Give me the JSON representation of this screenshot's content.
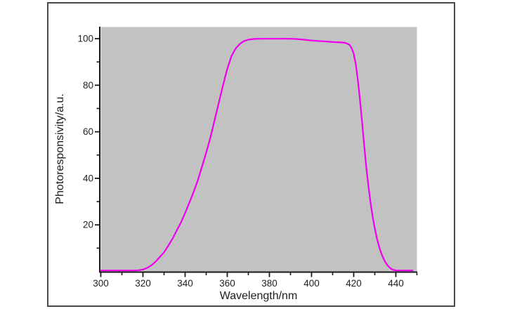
{
  "figure": {
    "kind": "scientific-line-plot",
    "background_color": "#ffffff",
    "border_color": "#4a4a4a"
  },
  "chart_data": {
    "type": "line",
    "title": "",
    "xlabel": "Wavelength/nm",
    "ylabel": "Photoresponsivity/a.u.",
    "xlim": [
      300,
      450
    ],
    "ylim": [
      0,
      105
    ],
    "x_major_ticks": [
      300,
      320,
      340,
      360,
      380,
      400,
      420,
      440
    ],
    "x_minor_ticks": [
      310,
      330,
      350,
      370,
      390,
      410,
      430,
      450
    ],
    "y_major_ticks": [
      20,
      40,
      60,
      80,
      100
    ],
    "y_minor_ticks": [
      10,
      30,
      50,
      70,
      90
    ],
    "grid": false,
    "legend_position": "none",
    "plot_background": "#c2c2c2",
    "line_color": "#ee00ee",
    "axis_color": "#1a1a1a",
    "tick_label_color": "#1f1f1f",
    "series": [
      {
        "name": "photoresponsivity",
        "x": [
          300,
          304,
          308,
          312,
          316,
          318,
          320,
          322,
          324,
          326,
          328,
          330,
          332,
          334,
          336,
          338,
          340,
          342,
          344,
          346,
          348,
          350,
          352,
          354,
          356,
          358,
          360,
          362,
          364,
          366,
          368,
          370,
          373,
          376,
          380,
          384,
          388,
          392,
          396,
          399,
          402,
          405,
          408,
          411,
          414,
          416,
          418,
          419,
          420,
          421,
          422,
          423,
          424,
          425,
          426,
          427,
          428,
          429,
          430,
          431,
          432,
          433,
          434,
          435,
          436,
          437,
          438,
          439,
          440,
          442,
          444,
          446,
          448
        ],
        "y": [
          0.4,
          0.4,
          0.4,
          0.4,
          0.4,
          0.5,
          0.8,
          1.5,
          2.6,
          4.2,
          6.2,
          8.2,
          11,
          14,
          17.5,
          21,
          25,
          29.5,
          34,
          39,
          45,
          51,
          57.5,
          65,
          72.5,
          80,
          87,
          92.5,
          95.8,
          97.8,
          99,
          99.6,
          99.9,
          100,
          100,
          100,
          100,
          99.9,
          99.6,
          99.3,
          99.1,
          98.9,
          98.7,
          98.5,
          98.4,
          98.2,
          97.4,
          96,
          93.5,
          89,
          82,
          73.5,
          64,
          54,
          44.5,
          36.5,
          29.5,
          23.5,
          18.5,
          14.3,
          10.8,
          8,
          5.8,
          4,
          2.7,
          1.7,
          1,
          0.6,
          0.4,
          0.4,
          0.4,
          0.4,
          0.4
        ]
      }
    ]
  }
}
